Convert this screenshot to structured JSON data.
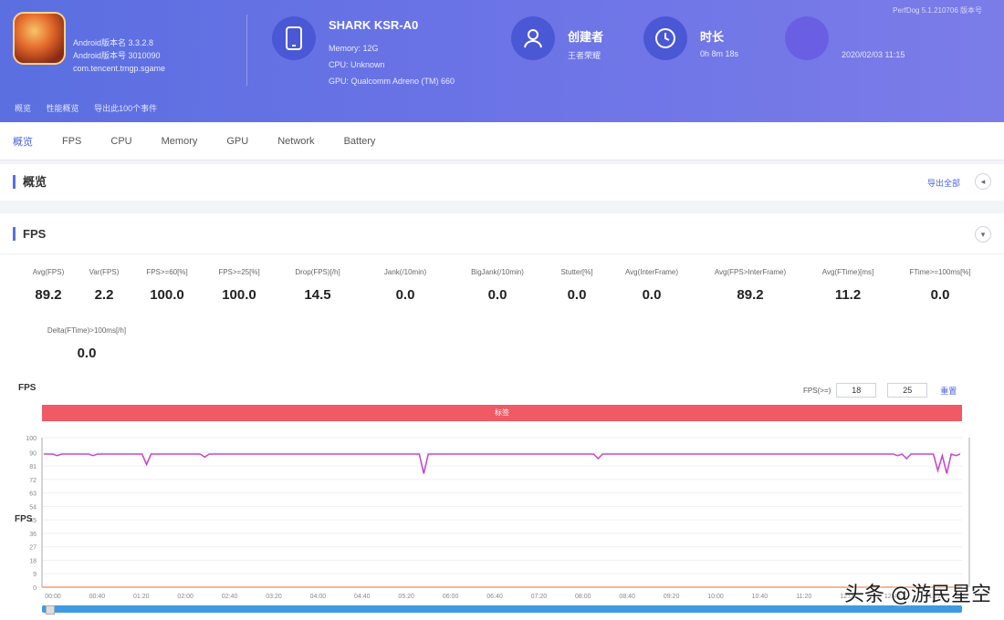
{
  "header": {
    "app_meta": [
      "Android版本名 3.3.2.8",
      "Android版本号 3010090",
      "com.tencent.tmgp.sgame"
    ],
    "device_name": "SHARK KSR-A0",
    "device_specs": [
      "Memory: 12G",
      "CPU: Unknown",
      "GPU: Qualcomm Adreno (TM) 660"
    ],
    "player_title": "创建者",
    "player_value": "王者荣耀",
    "duration_title": "时长",
    "duration_value": "0h 8m 18s",
    "top_right": "PerfDog 5.1.210706 版本号",
    "date_value": "2020/02/03 11:15",
    "crumbs": [
      "概览",
      "性能概览",
      "导出此100个事件"
    ]
  },
  "tabs": [
    "概览",
    "FPS",
    "CPU",
    "Memory",
    "GPU",
    "Network",
    "Battery"
  ],
  "overview": {
    "title": "概览",
    "export_label": "导出全部"
  },
  "fps_section": {
    "title": "FPS",
    "metrics": [
      {
        "label": "Avg(FPS)",
        "value": "89.2"
      },
      {
        "label": "Var(FPS)",
        "value": "2.2"
      },
      {
        "label": "FPS>=60[%]",
        "value": "100.0"
      },
      {
        "label": "FPS>=25[%]",
        "value": "100.0"
      },
      {
        "label": "Drop(FPS)[/h]",
        "value": "14.5"
      },
      {
        "label": "Jank(/10min)",
        "value": "0.0"
      },
      {
        "label": "BigJank(/10min)",
        "value": "0.0"
      },
      {
        "label": "Stutter[%]",
        "value": "0.0"
      },
      {
        "label": "Avg(InterFrame)",
        "value": "0.0"
      },
      {
        "label": "Avg(FPS>InterFrame)",
        "value": "89.2"
      },
      {
        "label": "Avg(FTime)[ms]",
        "value": "11.2"
      },
      {
        "label": "FTime>=100ms[%]",
        "value": "0.0"
      },
      {
        "label": "Delta(FTime)>100ms[/h]",
        "value": "0.0"
      }
    ]
  },
  "chart": {
    "label": "FPS",
    "range_label": "FPS(>=)",
    "range_low": "18",
    "range_high": "25",
    "reset_label": "重置",
    "bar_label": "标签",
    "accent_color": "#c64bc9",
    "bar_color": "#ef5a64"
  },
  "watermark": "头条 @游民星空",
  "chart_data": {
    "type": "line",
    "series": [
      {
        "values": [
          89,
          89,
          89,
          88,
          89,
          89,
          89,
          89,
          89,
          89,
          89,
          88,
          89,
          89,
          89,
          89,
          89,
          89,
          89,
          89,
          89,
          89,
          89,
          82,
          89,
          89,
          89,
          89,
          89,
          89,
          89,
          89,
          89,
          89,
          89,
          89,
          87,
          89,
          89,
          89,
          89,
          89,
          89,
          89,
          89,
          89,
          89,
          89,
          89,
          89,
          89,
          89,
          89,
          89,
          89,
          89,
          89,
          89,
          89,
          89,
          89,
          89,
          89,
          89,
          89,
          89,
          89,
          89,
          89,
          89,
          89,
          89,
          89,
          89,
          89,
          89,
          89,
          89,
          89,
          89,
          89,
          89,
          89,
          89,
          89,
          76,
          89,
          89,
          89,
          89,
          89,
          89,
          89,
          89,
          89,
          89,
          89,
          89,
          89,
          89,
          89,
          89,
          89,
          89,
          89,
          89,
          89,
          89,
          89,
          89,
          89,
          89,
          89,
          89,
          89,
          89,
          89,
          89,
          89,
          89,
          89,
          89,
          89,
          89,
          86,
          89,
          89,
          89,
          89,
          89,
          89,
          89,
          89,
          89,
          89,
          89,
          89,
          89,
          89,
          89,
          89,
          89,
          89,
          89,
          89,
          89,
          89,
          89,
          89,
          89,
          89,
          89,
          89,
          89,
          89,
          89,
          89,
          89,
          89,
          89,
          89,
          89,
          89,
          89,
          89,
          89,
          89,
          89,
          89,
          89,
          89,
          89,
          89,
          89,
          89,
          89,
          89,
          89,
          89,
          89,
          89,
          89,
          89,
          89,
          89,
          89,
          89,
          89,
          89,
          89,
          89,
          88,
          89,
          86,
          89,
          89,
          89,
          89,
          89,
          89,
          78,
          88,
          76,
          89,
          88,
          89
        ]
      }
    ],
    "x_ticks": [
      "00:00",
      "00:40",
      "01:20",
      "02:00",
      "02:40",
      "03:20",
      "04:00",
      "04:40",
      "05:20",
      "06:00",
      "06:40",
      "07:20",
      "08:00",
      "08:40",
      "09:20",
      "10:00",
      "10:40",
      "11:20",
      "12:00",
      "12:40",
      "13:20"
    ],
    "y_ticks": [
      "0",
      "9",
      "18",
      "27",
      "36",
      "45",
      "54",
      "63",
      "72",
      "81",
      "90",
      "100"
    ],
    "ylim": [
      0,
      100
    ],
    "ylabel": "FPS",
    "grid": true
  }
}
